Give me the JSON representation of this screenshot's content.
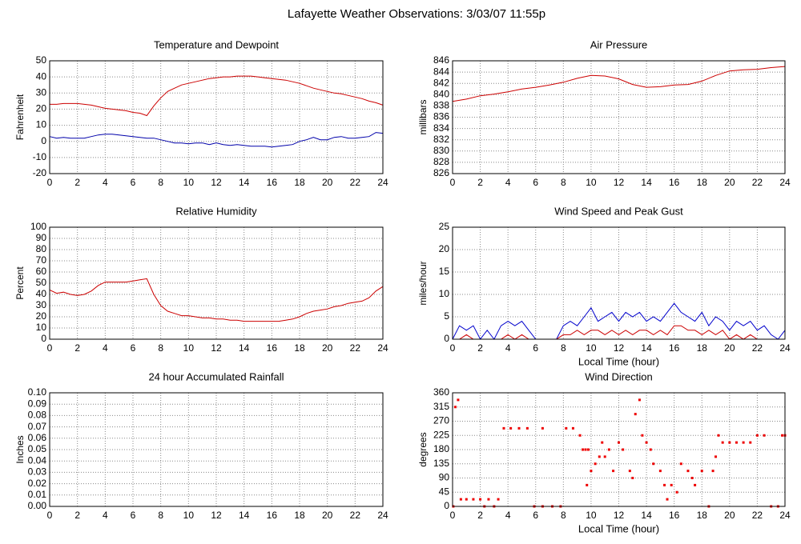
{
  "title": "Lafayette Weather Observations: 3/03/07 11:55p",
  "chart_data": [
    {
      "type": "line",
      "title": "Temperature and Dewpoint",
      "ylabel": "Fahrenheit",
      "x": [
        0,
        0.5,
        1,
        1.5,
        2,
        2.5,
        3,
        3.5,
        4,
        4.5,
        5,
        5.5,
        6,
        6.5,
        7,
        7.5,
        8,
        8.5,
        9,
        9.5,
        10,
        10.5,
        11,
        11.5,
        12,
        12.5,
        13,
        13.5,
        14,
        14.5,
        15,
        15.5,
        16,
        16.5,
        17,
        17.5,
        18,
        18.5,
        19,
        19.5,
        20,
        20.5,
        21,
        21.5,
        22,
        22.5,
        23,
        23.5,
        24
      ],
      "series": [
        {
          "name": "Temperature",
          "color": "#cc0000",
          "values": [
            23,
            23,
            23.5,
            23.5,
            23.5,
            23,
            22.5,
            21.5,
            20.5,
            20,
            19.5,
            19,
            18,
            17.5,
            16,
            22,
            27,
            31,
            33,
            35,
            36,
            37,
            38,
            39,
            39.5,
            40,
            40,
            40.5,
            40.5,
            40.5,
            40,
            39.5,
            39,
            38.5,
            38,
            37,
            36,
            34.5,
            33,
            32,
            31,
            30,
            29.5,
            28.5,
            27.5,
            26.5,
            25,
            24,
            22.5
          ]
        },
        {
          "name": "Dewpoint",
          "color": "#0000aa",
          "values": [
            3,
            2,
            2.5,
            2,
            2,
            2,
            3,
            4,
            4.5,
            4.5,
            4,
            3.5,
            3,
            2.5,
            2,
            2,
            1,
            0,
            -1,
            -1,
            -1.5,
            -1,
            -1,
            -2,
            -1,
            -2,
            -2.5,
            -2,
            -2.5,
            -3,
            -3,
            -3,
            -3.5,
            -3,
            -2.5,
            -2,
            0,
            1,
            2.5,
            1,
            1,
            2.5,
            3,
            2,
            2,
            2.5,
            3,
            5.5,
            5
          ]
        }
      ],
      "xlim": [
        0,
        24
      ],
      "xticks": [
        0,
        2,
        4,
        6,
        8,
        10,
        12,
        14,
        16,
        18,
        20,
        22,
        24
      ],
      "ylim": [
        -20,
        50
      ],
      "yticks": [
        -20,
        -10,
        0,
        10,
        20,
        30,
        40,
        50
      ],
      "grid": true
    },
    {
      "type": "line",
      "title": "Air Pressure",
      "ylabel": "millibars",
      "x": [
        0,
        1,
        2,
        3,
        4,
        5,
        6,
        7,
        8,
        9,
        10,
        11,
        12,
        13,
        14,
        15,
        16,
        17,
        18,
        19,
        20,
        21,
        22,
        23,
        24
      ],
      "series": [
        {
          "name": "Pressure",
          "color": "#cc0000",
          "values": [
            838.8,
            839.2,
            839.8,
            840.1,
            840.5,
            841,
            841.3,
            841.7,
            842.2,
            842.9,
            843.4,
            843.3,
            842.8,
            841.8,
            841.3,
            841.4,
            841.7,
            841.8,
            842.4,
            843.4,
            844.2,
            844.4,
            844.5,
            844.8,
            845
          ]
        }
      ],
      "xlim": [
        0,
        24
      ],
      "xticks": [
        0,
        2,
        4,
        6,
        8,
        10,
        12,
        14,
        16,
        18,
        20,
        22,
        24
      ],
      "ylim": [
        826,
        846
      ],
      "yticks": [
        826,
        828,
        830,
        832,
        834,
        836,
        838,
        840,
        842,
        844,
        846
      ],
      "grid": true
    },
    {
      "type": "line",
      "title": "Relative Humidity",
      "ylabel": "Percent",
      "x": [
        0,
        0.5,
        1,
        1.5,
        2,
        2.5,
        3,
        3.5,
        4,
        4.5,
        5,
        5.5,
        6,
        6.5,
        7,
        7.5,
        8,
        8.5,
        9,
        9.5,
        10,
        10.5,
        11,
        11.5,
        12,
        12.5,
        13,
        13.5,
        14,
        14.5,
        15,
        15.5,
        16,
        16.5,
        17,
        17.5,
        18,
        18.5,
        19,
        19.5,
        20,
        20.5,
        21,
        21.5,
        22,
        22.5,
        23,
        23.5,
        24
      ],
      "series": [
        {
          "name": "Humidity",
          "color": "#cc0000",
          "values": [
            44,
            41,
            42,
            40,
            39,
            40,
            43,
            48,
            51,
            51,
            51,
            51,
            52,
            53,
            54,
            40,
            30,
            25,
            23,
            21,
            21,
            20,
            19,
            19,
            18,
            18,
            17,
            17,
            16,
            16,
            16,
            16,
            16,
            16,
            17,
            18,
            20,
            23,
            25,
            26,
            27,
            29,
            30,
            32,
            33,
            34,
            37,
            43,
            47
          ]
        }
      ],
      "xlim": [
        0,
        24
      ],
      "xticks": [
        0,
        2,
        4,
        6,
        8,
        10,
        12,
        14,
        16,
        18,
        20,
        22,
        24
      ],
      "ylim": [
        0,
        100
      ],
      "yticks": [
        0,
        10,
        20,
        30,
        40,
        50,
        60,
        70,
        80,
        90,
        100
      ],
      "grid": true
    },
    {
      "type": "line",
      "title": "Wind Speed and Peak Gust",
      "ylabel": "miles/hour",
      "xlabel": "Local Time (hour)",
      "x": [
        0,
        0.5,
        1,
        1.5,
        2,
        2.5,
        3,
        3.5,
        4,
        4.5,
        5,
        5.5,
        6,
        6.5,
        7,
        7.5,
        8,
        8.5,
        9,
        9.5,
        10,
        10.5,
        11,
        11.5,
        12,
        12.5,
        13,
        13.5,
        14,
        14.5,
        15,
        15.5,
        16,
        16.5,
        17,
        17.5,
        18,
        18.5,
        19,
        19.5,
        20,
        20.5,
        21,
        21.5,
        22,
        22.5,
        23,
        23.5,
        24
      ],
      "series": [
        {
          "name": "Wind Speed",
          "color": "#0000cc",
          "values": [
            0,
            3,
            2,
            3,
            0,
            2,
            0,
            3,
            4,
            3,
            4,
            2,
            0,
            0,
            0,
            0,
            3,
            4,
            3,
            5,
            7,
            4,
            5,
            6,
            4,
            6,
            5,
            6,
            4,
            5,
            4,
            6,
            8,
            6,
            5,
            4,
            6,
            3,
            5,
            4,
            2,
            4,
            3,
            4,
            2,
            3,
            1,
            0,
            2
          ]
        },
        {
          "name": "Peak Gust",
          "color": "#cc0000",
          "values": [
            0,
            0,
            1,
            0,
            0,
            0,
            0,
            0,
            1,
            0,
            1,
            0,
            0,
            0,
            0,
            0,
            1,
            1,
            2,
            1,
            2,
            2,
            1,
            2,
            1,
            2,
            1,
            2,
            2,
            1,
            2,
            1,
            3,
            3,
            2,
            2,
            1,
            2,
            1,
            2,
            0,
            1,
            0,
            1,
            0,
            0,
            0,
            0,
            0
          ]
        }
      ],
      "xlim": [
        0,
        24
      ],
      "xticks": [
        0,
        2,
        4,
        6,
        8,
        10,
        12,
        14,
        16,
        18,
        20,
        22,
        24
      ],
      "ylim": [
        0,
        25
      ],
      "yticks": [
        0,
        5,
        10,
        15,
        20,
        25
      ],
      "grid": true
    },
    {
      "type": "line",
      "title": "24 hour Accumulated Rainfall",
      "ylabel": "Inches",
      "x": [
        0,
        24
      ],
      "series": [
        {
          "name": "Rainfall",
          "color": "#cc0000",
          "values": [
            0,
            0
          ]
        }
      ],
      "xlim": [
        0,
        24
      ],
      "xticks": [
        0,
        2,
        4,
        6,
        8,
        10,
        12,
        14,
        16,
        18,
        20,
        22,
        24
      ],
      "ylim": [
        0,
        0.1
      ],
      "yticks": [
        {
          "value": 0,
          "label": "0.00"
        },
        0.01,
        0.02,
        0.03,
        0.04,
        0.05,
        0.06,
        0.07,
        0.08,
        0.09,
        {
          "value": 0.1,
          "label": "0.10"
        }
      ],
      "grid": true
    },
    {
      "type": "scatter",
      "title": "Wind Direction",
      "ylabel": "degrees",
      "xlabel": "Local Time (hour)",
      "x": [
        0.05,
        0.2,
        0.4,
        0.6,
        1,
        1.5,
        2,
        2.3,
        2.6,
        3,
        3.3,
        3.7,
        4.2,
        4.8,
        5.4,
        5.9,
        6.5,
        6.5,
        7.2,
        7.8,
        8.2,
        8.7,
        9.2,
        9.4,
        9.6,
        9.7,
        9.8,
        10,
        10.3,
        10.6,
        10.8,
        11,
        11.3,
        11.6,
        12,
        12.3,
        12.8,
        13,
        13.2,
        13.5,
        13.7,
        14,
        14.3,
        14.5,
        15,
        15.3,
        15.5,
        15.8,
        16.2,
        16.5,
        17,
        17.3,
        17.5,
        18,
        18.5,
        18.8,
        19,
        19.2,
        19.5,
        20,
        20.5,
        21,
        21.5,
        22,
        22.5,
        23,
        23.5,
        23.8,
        24
      ],
      "series": [
        {
          "name": "Direction",
          "color": "#ee0000",
          "values": [
            0,
            315,
            337.5,
            22.5,
            22.5,
            22.5,
            22.5,
            0,
            22.5,
            0,
            22.5,
            247.5,
            247.5,
            247.5,
            247.5,
            0,
            0,
            247.5,
            0,
            0,
            247.5,
            247.5,
            225,
            180,
            180,
            67.5,
            180,
            112.5,
            135,
            157.5,
            202.5,
            157.5,
            180,
            112.5,
            202.5,
            180,
            112.5,
            90,
            292.5,
            337.5,
            225,
            202.5,
            180,
            135,
            112.5,
            67.5,
            22.5,
            67.5,
            45,
            135,
            112.5,
            90,
            67.5,
            112.5,
            0,
            112.5,
            157.5,
            225,
            202.5,
            202.5,
            202.5,
            202.5,
            202.5,
            225,
            225,
            0,
            0,
            225,
            225
          ]
        }
      ],
      "xlim": [
        0,
        24
      ],
      "xticks": [
        0,
        2,
        4,
        6,
        8,
        10,
        12,
        14,
        16,
        18,
        20,
        22,
        24
      ],
      "ylim": [
        0,
        360
      ],
      "yticks": [
        0,
        45,
        90,
        135,
        180,
        225,
        270,
        315,
        360
      ],
      "grid": true
    }
  ]
}
